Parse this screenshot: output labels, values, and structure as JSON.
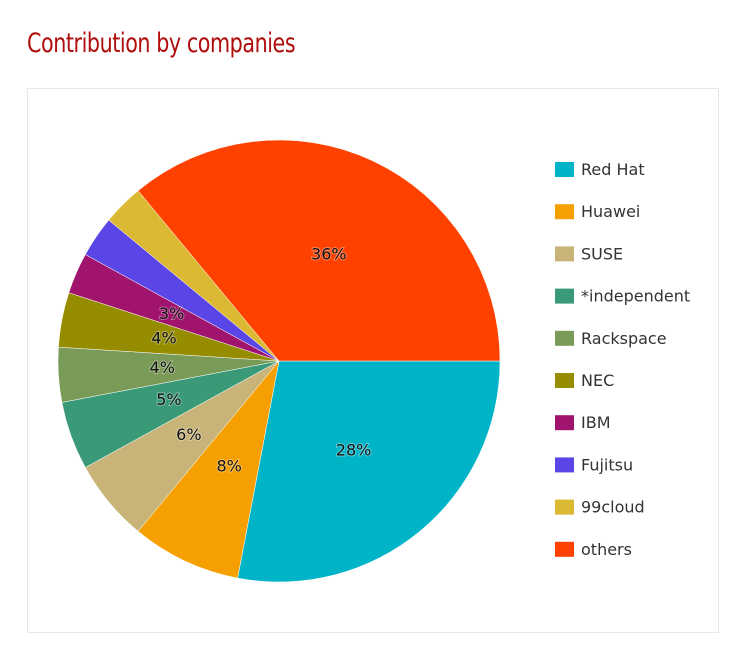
{
  "chart_data": {
    "type": "pie",
    "title": "Contribution by companies",
    "legend_position": "right",
    "slices": [
      {
        "label": "Red Hat",
        "value": 28,
        "color": "#00b4c8",
        "data_label": "28%"
      },
      {
        "label": "Huawei",
        "value": 8,
        "color": "#f5a000",
        "data_label": "8%"
      },
      {
        "label": "SUSE",
        "value": 6,
        "color": "#c8b478",
        "data_label": "6%"
      },
      {
        "label": "*independent",
        "value": 5,
        "color": "#3a9a78",
        "data_label": "5%"
      },
      {
        "label": "Rackspace",
        "value": 4,
        "color": "#7a9a58",
        "data_label": "4%"
      },
      {
        "label": "NEC",
        "value": 4,
        "color": "#968c00",
        "data_label": "4%"
      },
      {
        "label": "IBM",
        "value": 3,
        "color": "#a0146e",
        "data_label": "3%"
      },
      {
        "label": "Fujitsu",
        "value": 3,
        "color": "#5a46e6",
        "data_label": ""
      },
      {
        "label": "99cloud",
        "value": 3,
        "color": "#dcb932",
        "data_label": ""
      },
      {
        "label": "others",
        "value": 36,
        "color": "#ff4100",
        "data_label": "36%"
      }
    ]
  }
}
